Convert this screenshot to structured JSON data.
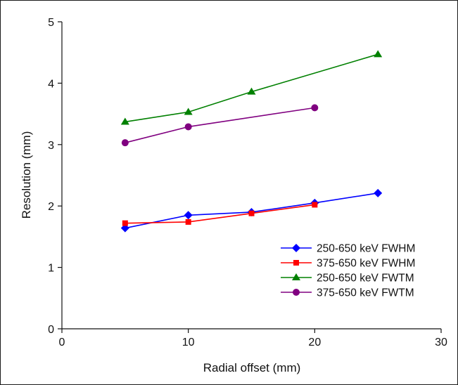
{
  "chart_data": {
    "type": "line",
    "xlabel": "Radial offset (mm)",
    "ylabel": "Resolution (mm)",
    "xlim": [
      0,
      30
    ],
    "ylim": [
      0,
      5
    ],
    "xticks": [
      0,
      10,
      20,
      30
    ],
    "yticks": [
      0,
      1,
      2,
      3,
      4,
      5
    ],
    "grid": false,
    "legend_position": "bottom-right",
    "series": [
      {
        "name": "250-650 keV FWHM",
        "color": "#0000ff",
        "marker": "diamond",
        "x": [
          5,
          10,
          15,
          20,
          25
        ],
        "y": [
          1.64,
          1.85,
          1.9,
          2.05,
          2.21
        ]
      },
      {
        "name": "375-650 keV FWHM",
        "color": "#ff0000",
        "marker": "square",
        "x": [
          5,
          10,
          15,
          20
        ],
        "y": [
          1.72,
          1.74,
          1.88,
          2.02
        ]
      },
      {
        "name": "250-650 keV FWTM",
        "color": "#008000",
        "marker": "triangle",
        "x": [
          5,
          10,
          15,
          25
        ],
        "y": [
          3.37,
          3.53,
          3.86,
          4.47
        ]
      },
      {
        "name": "375-650 keV FWTM",
        "color": "#800080",
        "marker": "circle",
        "x": [
          5,
          10,
          20
        ],
        "y": [
          3.03,
          3.29,
          3.6
        ]
      }
    ]
  }
}
